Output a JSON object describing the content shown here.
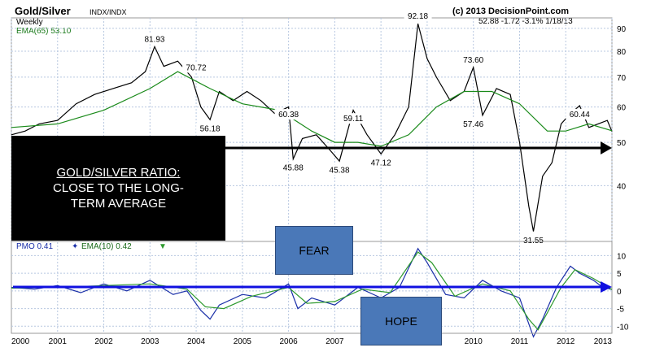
{
  "header": {
    "title": "Gold/Silver",
    "symbol": "INDX/INDX",
    "copyright": "(c) 2013 DecisionPoint.com",
    "periodicity": "Weekly",
    "quote": "52.88 -1.72 -3.1% 1/18/13",
    "ema_label": "EMA(65) 53.10"
  },
  "pmo_legend": {
    "pmo": "PMO 0.41",
    "ema": "EMA(10) 0.42"
  },
  "overlays": {
    "ratio_line1": "GOLD/SILVER RATIO:",
    "ratio_line2": "CLOSE TO THE LONG-",
    "ratio_line3": "TERM AVERAGE",
    "fear": "FEAR",
    "hope": "HOPE"
  },
  "colors": {
    "price": "#000000",
    "ema_line": "#1a8a1a",
    "pmo_line": "#1a2fa8",
    "pmo_ema": "#2e9a2e",
    "arrow": "#000000",
    "zero_arrow": "#1010e0",
    "box": "#4a78b8"
  },
  "chart_data": {
    "type": "line",
    "price_panel": {
      "scale": "log",
      "ylim": [
        30,
        95
      ],
      "y_ticks": [
        40,
        50,
        60,
        70,
        80,
        90
      ],
      "x_ticks": [
        "2000",
        "2001",
        "2002",
        "2003",
        "2004",
        "2005",
        "2006",
        "2007",
        "2008",
        "2009",
        "2010",
        "2011",
        "2012",
        "2013"
      ],
      "x_tick_years": [
        2000,
        2001,
        2002,
        2003,
        2004,
        2005,
        2006,
        2007,
        2008,
        2009,
        2010,
        2011,
        2012,
        2013
      ],
      "annotations": [
        {
          "label": "81.93",
          "x": 2003.1,
          "y": 81.93
        },
        {
          "label": "70.72",
          "x": 2004.0,
          "y": 70.72
        },
        {
          "label": "56.18",
          "x": 2004.3,
          "y": 56.18
        },
        {
          "label": "60.38",
          "x": 2006.0,
          "y": 60.38
        },
        {
          "label": "45.88",
          "x": 2006.1,
          "y": 45.88
        },
        {
          "label": "45.38",
          "x": 2007.1,
          "y": 45.38
        },
        {
          "label": "59.11",
          "x": 2007.4,
          "y": 59.11
        },
        {
          "label": "47.12",
          "x": 2008.0,
          "y": 47.12
        },
        {
          "label": "92.18",
          "x": 2008.8,
          "y": 92.18
        },
        {
          "label": "73.60",
          "x": 2010.0,
          "y": 73.6
        },
        {
          "label": "57.46",
          "x": 2010.0,
          "y": 57.46
        },
        {
          "label": "31.55",
          "x": 2011.3,
          "y": 31.55
        },
        {
          "label": "60.44",
          "x": 2012.3,
          "y": 60.44
        }
      ],
      "series": [
        {
          "name": "Gold/Silver",
          "x": [
            2000,
            2000.3,
            2000.6,
            2001,
            2001.4,
            2001.8,
            2002.2,
            2002.6,
            2002.9,
            2003.1,
            2003.3,
            2003.6,
            2003.9,
            2004.1,
            2004.3,
            2004.5,
            2004.8,
            2005.1,
            2005.4,
            2005.7,
            2006.0,
            2006.1,
            2006.3,
            2006.6,
            2006.9,
            2007.1,
            2007.4,
            2007.7,
            2008.0,
            2008.3,
            2008.6,
            2008.8,
            2009.0,
            2009.2,
            2009.5,
            2009.8,
            2010.0,
            2010.2,
            2010.5,
            2010.8,
            2011.0,
            2011.2,
            2011.3,
            2011.5,
            2011.7,
            2011.9,
            2012.1,
            2012.3,
            2012.5,
            2012.7,
            2012.9,
            2013.0
          ],
          "values": [
            52,
            53,
            55,
            56,
            61,
            64,
            66,
            68,
            72,
            81.9,
            74,
            76,
            70,
            60,
            56.2,
            65,
            62,
            65,
            62,
            58,
            60,
            45.9,
            51,
            52,
            48,
            45.4,
            59,
            52,
            47.1,
            52,
            60,
            92.2,
            77,
            70,
            62,
            65,
            73.6,
            57.5,
            66,
            64,
            50,
            36,
            31.6,
            42,
            45,
            55,
            58,
            60.4,
            54,
            55,
            56,
            52.9
          ]
        },
        {
          "name": "EMA(65)",
          "x": [
            2000,
            2001,
            2002,
            2003,
            2003.6,
            2004.3,
            2005,
            2005.8,
            2006.5,
            2007,
            2007.5,
            2008,
            2008.6,
            2009.2,
            2009.8,
            2010.4,
            2011,
            2011.6,
            2012,
            2012.5,
            2013.0
          ],
          "values": [
            54,
            55,
            59,
            66,
            72,
            66,
            61,
            59,
            53,
            50,
            50,
            49,
            52,
            60,
            65,
            65,
            61,
            53,
            53,
            55,
            53.1
          ]
        }
      ]
    },
    "pmo_panel": {
      "ylim": [
        -12,
        14
      ],
      "y_ticks": [
        -10,
        -5,
        0,
        5,
        10
      ],
      "series": [
        {
          "name": "PMO",
          "x": [
            2000,
            2000.5,
            2001,
            2001.5,
            2002,
            2002.5,
            2003,
            2003.5,
            2003.8,
            2004.1,
            2004.3,
            2004.5,
            2005,
            2005.5,
            2006,
            2006.2,
            2006.5,
            2007,
            2007.5,
            2008,
            2008.4,
            2008.8,
            2009.0,
            2009.4,
            2009.8,
            2010.2,
            2010.6,
            2011.0,
            2011.3,
            2011.5,
            2011.8,
            2012.1,
            2012.3,
            2012.6,
            2012.8,
            2013.0
          ],
          "values": [
            1,
            0.5,
            1.5,
            -0.5,
            2,
            0,
            3,
            -1,
            0,
            -5.5,
            -8,
            -4,
            -1,
            -2,
            2,
            -5,
            -2,
            -4,
            1,
            -2,
            1,
            12,
            8,
            -1,
            -2,
            3,
            0,
            -2,
            -13,
            -8,
            1,
            7,
            5,
            3,
            1,
            0.4
          ]
        },
        {
          "name": "EMA(10)",
          "x": [
            2000,
            2001,
            2002,
            2003,
            2003.8,
            2004.2,
            2004.6,
            2005.2,
            2006,
            2006.4,
            2007,
            2007.6,
            2008.2,
            2008.8,
            2009.1,
            2009.6,
            2010.2,
            2010.8,
            2011.2,
            2011.4,
            2011.9,
            2012.2,
            2012.6,
            2013.0
          ],
          "values": [
            0.8,
            1,
            1.5,
            2,
            0.5,
            -4.5,
            -5,
            -1.5,
            1,
            -3.5,
            -3,
            0.5,
            -0.5,
            11,
            8,
            -1.5,
            2,
            0,
            -8,
            -11,
            1,
            6,
            3.5,
            0.4
          ]
        }
      ]
    }
  }
}
